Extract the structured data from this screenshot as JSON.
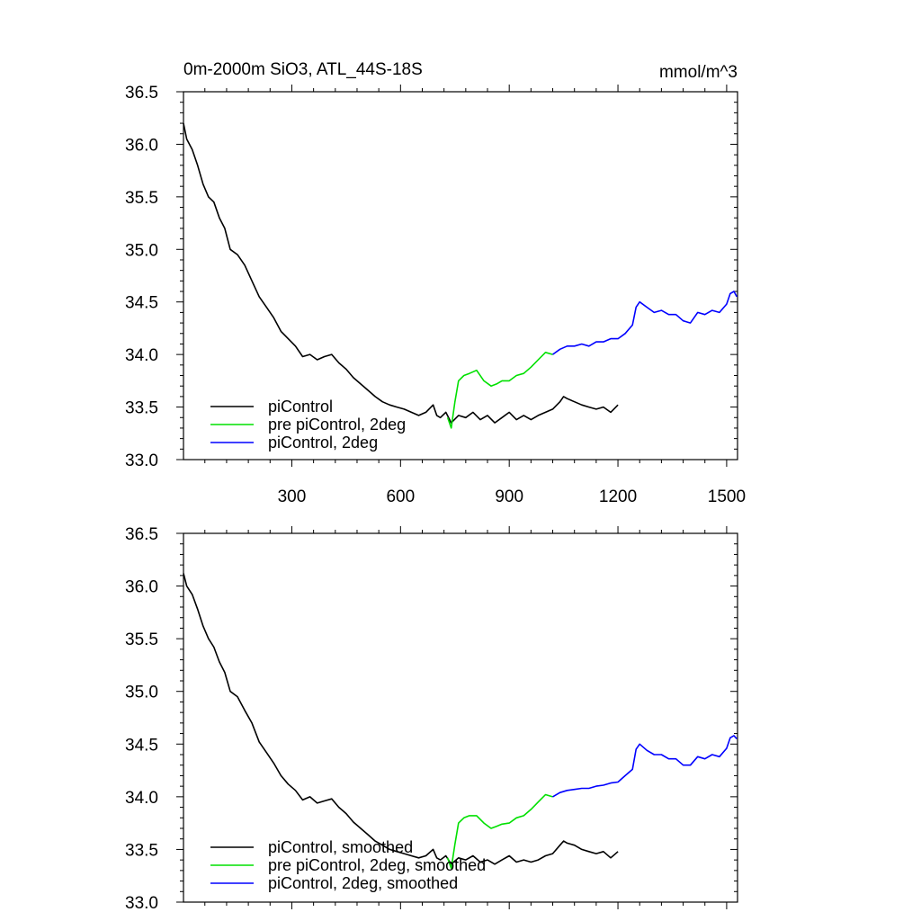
{
  "figure": {
    "title": "0m-2000m SiO3, ATL_44S-18S",
    "units": "mmol/m^3"
  },
  "colors": {
    "piControl": "#000000",
    "pre_piControl_2deg": "#00e000",
    "piControl_2deg": "#0000ff"
  },
  "chart_data": [
    {
      "type": "line",
      "title": "0m-2000m SiO3, ATL_44S-18S",
      "ylabel": "mmol/m^3",
      "xlim": [
        1,
        1530
      ],
      "ylim": [
        33.0,
        36.5
      ],
      "xticks": [
        300,
        600,
        900,
        1200,
        1500
      ],
      "yticks": [
        33.0,
        33.5,
        34.0,
        34.5,
        35.0,
        35.5,
        36.0,
        36.5
      ],
      "grid": false,
      "legend_position": "bottom-left",
      "series": [
        {
          "name": "piControl",
          "color": "#000000",
          "x": [
            1,
            10,
            25,
            40,
            55,
            70,
            85,
            100,
            115,
            130,
            150,
            170,
            190,
            210,
            230,
            250,
            270,
            290,
            310,
            330,
            350,
            370,
            390,
            410,
            430,
            450,
            470,
            490,
            510,
            530,
            550,
            570,
            590,
            610,
            630,
            650,
            670,
            690,
            700,
            710,
            725,
            740,
            760,
            780,
            800,
            820,
            840,
            860,
            880,
            900,
            920,
            940,
            960,
            980,
            1000,
            1020,
            1040,
            1050,
            1060,
            1080,
            1100,
            1120,
            1140,
            1160,
            1180,
            1200
          ],
          "y": [
            36.2,
            36.05,
            35.95,
            35.8,
            35.62,
            35.5,
            35.45,
            35.3,
            35.2,
            35.0,
            34.95,
            34.85,
            34.7,
            34.55,
            34.45,
            34.35,
            34.22,
            34.15,
            34.08,
            33.98,
            34.0,
            33.95,
            33.98,
            34.0,
            33.92,
            33.86,
            33.78,
            33.72,
            33.66,
            33.6,
            33.55,
            33.52,
            33.5,
            33.48,
            33.45,
            33.42,
            33.45,
            33.52,
            33.42,
            33.4,
            33.45,
            33.35,
            33.42,
            33.4,
            33.45,
            33.38,
            33.42,
            33.35,
            33.4,
            33.45,
            33.38,
            33.42,
            33.38,
            33.42,
            33.45,
            33.48,
            33.55,
            33.6,
            33.58,
            33.55,
            33.52,
            33.5,
            33.48,
            33.5,
            33.45,
            33.52
          ]
        },
        {
          "name": "pre piControl, 2deg",
          "color": "#00e000",
          "x": [
            730,
            740,
            750,
            760,
            775,
            790,
            810,
            830,
            850,
            865,
            880,
            900,
            920,
            940,
            960,
            980,
            1000,
            1020
          ],
          "y": [
            33.4,
            33.3,
            33.55,
            33.75,
            33.8,
            33.82,
            33.85,
            33.75,
            33.7,
            33.72,
            33.75,
            33.75,
            33.8,
            33.82,
            33.88,
            33.95,
            34.02,
            34.0
          ]
        },
        {
          "name": "piControl, 2deg",
          "color": "#0000ff",
          "x": [
            1020,
            1040,
            1060,
            1080,
            1100,
            1120,
            1140,
            1160,
            1180,
            1200,
            1220,
            1240,
            1250,
            1260,
            1280,
            1300,
            1320,
            1340,
            1360,
            1380,
            1400,
            1420,
            1440,
            1460,
            1480,
            1500,
            1510,
            1520,
            1528
          ],
          "y": [
            34.0,
            34.05,
            34.08,
            34.08,
            34.1,
            34.08,
            34.12,
            34.12,
            34.15,
            34.15,
            34.2,
            34.28,
            34.45,
            34.5,
            34.45,
            34.4,
            34.42,
            34.38,
            34.38,
            34.32,
            34.3,
            34.4,
            34.38,
            34.42,
            34.4,
            34.48,
            34.58,
            34.6,
            34.55
          ]
        }
      ]
    },
    {
      "type": "line",
      "xlim": [
        1,
        1530
      ],
      "ylim": [
        33.0,
        36.5
      ],
      "yticks": [
        33.0,
        33.5,
        34.0,
        34.5,
        35.0,
        35.5,
        36.0,
        36.5
      ],
      "grid": false,
      "legend_position": "bottom-left",
      "series": [
        {
          "name": "piControl, smoothed",
          "color": "#000000",
          "x": [
            1,
            10,
            25,
            40,
            55,
            70,
            85,
            100,
            115,
            130,
            150,
            170,
            190,
            210,
            230,
            250,
            270,
            290,
            310,
            330,
            350,
            370,
            390,
            410,
            430,
            450,
            470,
            490,
            510,
            530,
            550,
            570,
            590,
            610,
            630,
            650,
            670,
            690,
            700,
            710,
            725,
            740,
            760,
            780,
            800,
            820,
            840,
            860,
            880,
            900,
            920,
            940,
            960,
            980,
            1000,
            1020,
            1040,
            1050,
            1060,
            1080,
            1100,
            1120,
            1140,
            1160,
            1180,
            1200
          ],
          "y": [
            36.12,
            36.0,
            35.92,
            35.78,
            35.62,
            35.5,
            35.42,
            35.28,
            35.18,
            35.0,
            34.95,
            34.82,
            34.7,
            34.52,
            34.42,
            34.32,
            34.2,
            34.12,
            34.06,
            33.97,
            34.0,
            33.94,
            33.96,
            33.98,
            33.9,
            33.84,
            33.76,
            33.7,
            33.64,
            33.58,
            33.54,
            33.5,
            33.48,
            33.46,
            33.44,
            33.42,
            33.44,
            33.5,
            33.42,
            33.4,
            33.44,
            33.36,
            33.42,
            33.4,
            33.44,
            33.38,
            33.4,
            33.36,
            33.4,
            33.44,
            33.38,
            33.4,
            33.38,
            33.4,
            33.44,
            33.46,
            33.54,
            33.58,
            33.56,
            33.54,
            33.5,
            33.48,
            33.46,
            33.48,
            33.42,
            33.48
          ]
        },
        {
          "name": "pre piControl, 2deg, smoothed",
          "color": "#00e000",
          "x": [
            730,
            740,
            750,
            760,
            775,
            790,
            810,
            830,
            850,
            865,
            880,
            900,
            920,
            940,
            960,
            980,
            1000,
            1020
          ],
          "y": [
            33.42,
            33.32,
            33.55,
            33.75,
            33.8,
            33.82,
            33.82,
            33.75,
            33.7,
            33.72,
            33.74,
            33.75,
            33.8,
            33.82,
            33.88,
            33.95,
            34.02,
            34.0
          ]
        },
        {
          "name": "piControl, 2deg, smoothed",
          "color": "#0000ff",
          "x": [
            1020,
            1040,
            1060,
            1080,
            1100,
            1120,
            1140,
            1160,
            1180,
            1200,
            1220,
            1240,
            1250,
            1260,
            1280,
            1300,
            1320,
            1340,
            1360,
            1380,
            1400,
            1420,
            1440,
            1460,
            1480,
            1500,
            1510,
            1520,
            1528
          ],
          "y": [
            34.0,
            34.04,
            34.06,
            34.07,
            34.08,
            34.08,
            34.1,
            34.11,
            34.13,
            34.14,
            34.2,
            34.26,
            34.45,
            34.5,
            34.44,
            34.4,
            34.4,
            34.36,
            34.36,
            34.3,
            34.3,
            34.38,
            34.36,
            34.4,
            34.38,
            34.46,
            34.56,
            34.58,
            34.55
          ]
        }
      ]
    }
  ]
}
